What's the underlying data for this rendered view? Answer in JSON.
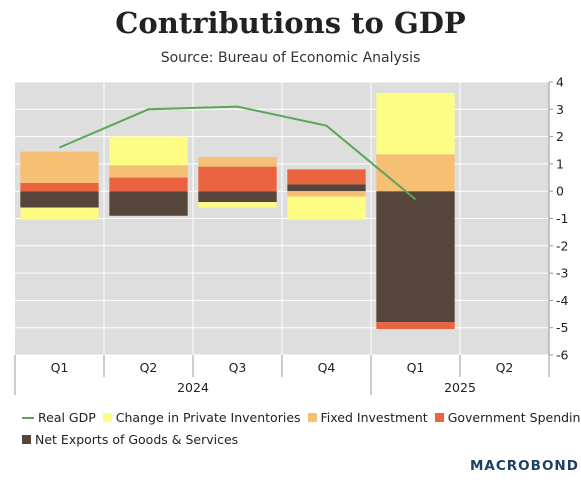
{
  "chart_data": {
    "type": "bar",
    "stacked": true,
    "title": "Contributions to GDP",
    "subtitle": "Source: Bureau of Economic Analysis",
    "categories": [
      "Q1",
      "Q2",
      "Q3",
      "Q4",
      "Q1",
      "Q2"
    ],
    "year_labels": [
      {
        "label": "2024",
        "span": [
          "Q1",
          "Q4"
        ]
      },
      {
        "label": "2025",
        "span": [
          "Q1",
          "Q2"
        ]
      }
    ],
    "ylim": [
      -6,
      4
    ],
    "yticks": [
      "4",
      "3",
      "2",
      "1",
      "0",
      "-1",
      "-2",
      "-3",
      "-4",
      "-5",
      "-6"
    ],
    "grid": true,
    "legend_position": "bottom",
    "series": [
      {
        "name": "Net Exports of Goods & Services",
        "color": "#55453a",
        "values": [
          -0.6,
          -0.9,
          -0.4,
          0.25,
          -4.8,
          null
        ]
      },
      {
        "name": "Government Spending",
        "color": "#ea6442",
        "values": [
          0.3,
          0.5,
          0.9,
          0.55,
          -0.25,
          null
        ]
      },
      {
        "name": "Fixed Investment",
        "color": "#f5bf74",
        "values": [
          1.15,
          0.45,
          0.35,
          -0.2,
          1.35,
          null
        ]
      },
      {
        "name": "Change in Private Inventories",
        "color": "#fdfd86",
        "values": [
          -0.45,
          1.05,
          -0.2,
          -0.85,
          2.25,
          null
        ]
      }
    ],
    "line": {
      "name": "Real GDP",
      "color": "#5aa55a",
      "values": [
        1.6,
        3.0,
        3.1,
        2.4,
        -0.3,
        null
      ]
    }
  },
  "brand": "MACROBOND"
}
